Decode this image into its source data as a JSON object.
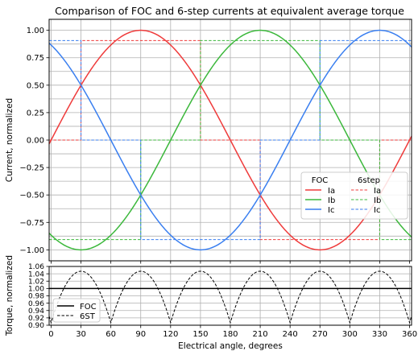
{
  "chart_data": [
    {
      "type": "line",
      "title": "Comparison of FOC and 6-step currents at equivalent average torque",
      "xlabel": "",
      "ylabel": "Current, normalized",
      "xlim": [
        -2,
        362
      ],
      "ylim": [
        -1.1,
        1.1
      ],
      "xticks": [
        0,
        30,
        60,
        90,
        120,
        150,
        180,
        210,
        240,
        270,
        300,
        330,
        360
      ],
      "yticks": [
        -1.0,
        -0.75,
        -0.5,
        -0.25,
        0.0,
        0.25,
        0.5,
        0.75,
        1.0
      ],
      "ytick_labels": [
        "−1.00",
        "−0.75",
        "−0.50",
        "−0.25",
        "0.00",
        "0.25",
        "0.50",
        "0.75",
        "1.00"
      ],
      "xtick_labels": [
        "0",
        "30",
        "60",
        "90",
        "120",
        "150",
        "180",
        "210",
        "240",
        "270",
        "300",
        "330",
        "360"
      ],
      "grid": true,
      "legend": {
        "placement": "lower-right",
        "col_titles": [
          "FOC",
          "6step"
        ],
        "foc_labels": [
          "Ia",
          "Ib",
          "Ic"
        ],
        "sixstep_labels": [
          "Ia",
          "Ib",
          "Ic"
        ]
      },
      "foc_amplitude": 1.0,
      "sixstep_level": 0.907,
      "marker_angles": [
        30,
        90,
        150,
        210,
        270,
        330
      ],
      "series": [
        {
          "name": "Ia",
          "group": "FOC",
          "style": "solid",
          "color": "#ef3b3b",
          "phase_deg": 0
        },
        {
          "name": "Ib",
          "group": "FOC",
          "style": "solid",
          "color": "#3cb83c",
          "phase_deg": -120
        },
        {
          "name": "Ic",
          "group": "FOC",
          "style": "solid",
          "color": "#3a7ff0",
          "phase_deg": 120
        },
        {
          "name": "Ia",
          "group": "6step",
          "style": "dashed",
          "color": "#ef3b3b",
          "phase_deg": 0
        },
        {
          "name": "Ib",
          "group": "6step",
          "style": "dashed",
          "color": "#3cb83c",
          "phase_deg": -120
        },
        {
          "name": "Ic",
          "group": "6step",
          "style": "dashed",
          "color": "#3a7ff0",
          "phase_deg": 120
        }
      ]
    },
    {
      "type": "line",
      "title": "",
      "xlabel": "Electrical angle, degrees",
      "ylabel": "Torque, normalized",
      "xlim": [
        -2,
        362
      ],
      "ylim": [
        0.9,
        1.06
      ],
      "xticks": [
        0,
        30,
        60,
        90,
        120,
        150,
        180,
        210,
        240,
        270,
        300,
        330,
        360
      ],
      "xtick_labels": [
        "0",
        "30",
        "60",
        "90",
        "120",
        "150",
        "180",
        "210",
        "240",
        "270",
        "300",
        "330",
        "360"
      ],
      "yticks": [
        0.9,
        0.92,
        0.94,
        0.96,
        0.98,
        1.0,
        1.02,
        1.04,
        1.06
      ],
      "ytick_labels": [
        "0.90",
        "0.92",
        "0.94",
        "0.96",
        "0.98",
        "1.00",
        "1.02",
        "1.04",
        "1.06"
      ],
      "grid": true,
      "legend": {
        "placement": "lower-left",
        "labels": [
          "FOC",
          "6ST"
        ]
      },
      "series": [
        {
          "name": "FOC",
          "style": "solid",
          "color": "#000000",
          "value": 1.0
        },
        {
          "name": "6ST",
          "style": "dashed",
          "color": "#000000",
          "min": 0.907,
          "max": 1.047,
          "period_deg": 60
        }
      ]
    }
  ]
}
